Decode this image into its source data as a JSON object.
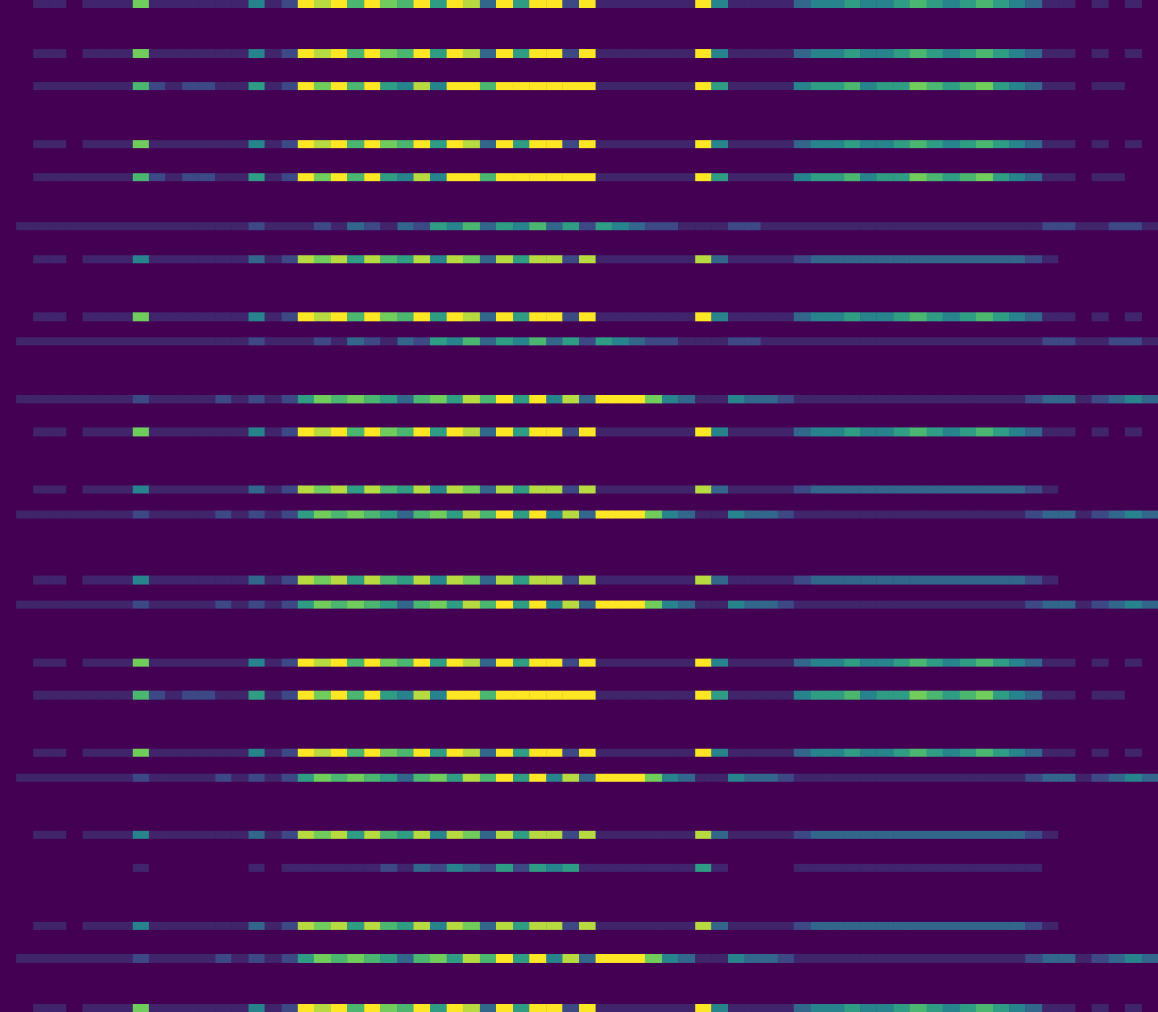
{
  "chart_data": {
    "type": "heatmap",
    "xlim": [
      0,
      70
    ],
    "ylim": [
      0,
      123
    ],
    "zlim": [
      0,
      9
    ],
    "y": [
      0,
      6,
      10,
      17,
      21,
      27,
      31,
      38,
      41,
      48,
      52,
      59,
      62,
      70,
      73,
      80,
      84,
      91,
      94,
      101,
      105,
      112,
      116,
      122
    ],
    "values": [
      [
        0,
        0,
        1,
        1,
        0,
        1,
        1,
        1,
        7,
        1,
        1,
        1,
        1,
        1,
        1,
        4,
        1,
        2,
        9,
        8,
        9,
        6,
        9,
        7,
        6,
        9,
        5,
        9,
        8,
        3,
        9,
        5,
        9,
        9,
        2,
        9,
        1,
        1,
        1,
        1,
        1,
        1,
        9,
        4,
        1,
        1,
        1,
        1,
        3,
        4,
        4,
        5,
        4,
        4,
        5,
        6,
        5,
        4,
        5,
        6,
        5,
        4,
        3,
        1,
        1,
        0,
        1,
        0,
        1,
        0
      ],
      [
        0,
        0,
        1,
        1,
        0,
        1,
        1,
        1,
        7,
        1,
        1,
        1,
        1,
        1,
        1,
        4,
        1,
        2,
        9,
        8,
        9,
        6,
        9,
        7,
        6,
        9,
        5,
        9,
        8,
        3,
        9,
        5,
        9,
        9,
        2,
        9,
        1,
        1,
        1,
        1,
        1,
        1,
        9,
        4,
        1,
        1,
        1,
        1,
        3,
        4,
        4,
        5,
        4,
        4,
        5,
        6,
        5,
        4,
        5,
        6,
        5,
        4,
        3,
        1,
        1,
        0,
        1,
        0,
        1,
        0
      ],
      [
        0,
        0,
        1,
        1,
        1,
        1,
        1,
        1,
        6,
        2,
        1,
        2,
        2,
        1,
        1,
        5,
        1,
        2,
        9,
        7,
        9,
        6,
        9,
        5,
        4,
        8,
        4,
        9,
        9,
        6,
        9,
        9,
        9,
        9,
        9,
        9,
        1,
        1,
        1,
        1,
        1,
        1,
        9,
        5,
        1,
        1,
        1,
        1,
        4,
        5,
        5,
        6,
        4,
        5,
        5,
        7,
        6,
        5,
        6,
        7,
        5,
        4,
        3,
        1,
        1,
        0,
        1,
        1,
        0,
        0
      ],
      [
        0,
        0,
        1,
        1,
        0,
        1,
        1,
        1,
        7,
        1,
        1,
        1,
        1,
        1,
        1,
        4,
        1,
        2,
        9,
        8,
        9,
        6,
        9,
        7,
        6,
        9,
        5,
        9,
        8,
        3,
        9,
        5,
        9,
        9,
        2,
        9,
        1,
        1,
        1,
        1,
        1,
        1,
        9,
        4,
        1,
        1,
        1,
        1,
        3,
        4,
        4,
        5,
        4,
        4,
        5,
        6,
        5,
        4,
        5,
        6,
        5,
        4,
        3,
        1,
        1,
        0,
        1,
        0,
        1,
        0
      ],
      [
        0,
        0,
        1,
        1,
        1,
        1,
        1,
        1,
        6,
        2,
        1,
        2,
        2,
        1,
        1,
        5,
        1,
        2,
        9,
        7,
        9,
        6,
        9,
        5,
        4,
        8,
        4,
        9,
        9,
        6,
        9,
        9,
        9,
        9,
        9,
        9,
        1,
        1,
        1,
        1,
        1,
        1,
        9,
        5,
        1,
        1,
        1,
        1,
        4,
        5,
        5,
        6,
        4,
        5,
        5,
        7,
        6,
        5,
        6,
        7,
        5,
        4,
        3,
        1,
        1,
        0,
        1,
        1,
        0,
        0
      ],
      [
        0,
        1,
        1,
        1,
        1,
        1,
        1,
        1,
        1,
        1,
        1,
        1,
        1,
        1,
        1,
        2,
        1,
        1,
        1,
        2,
        1,
        3,
        2,
        1,
        3,
        2,
        5,
        4,
        6,
        3,
        5,
        4,
        6,
        3,
        5,
        2,
        5,
        4,
        3,
        2,
        2,
        1,
        1,
        1,
        2,
        2,
        1,
        1,
        1,
        1,
        1,
        1,
        1,
        1,
        1,
        1,
        1,
        1,
        1,
        1,
        1,
        1,
        1,
        2,
        2,
        1,
        1,
        2,
        2,
        1
      ],
      [
        0,
        0,
        1,
        1,
        0,
        1,
        1,
        1,
        4,
        1,
        1,
        1,
        1,
        1,
        1,
        3,
        1,
        2,
        8,
        7,
        8,
        5,
        8,
        6,
        5,
        8,
        4,
        8,
        7,
        3,
        8,
        5,
        8,
        8,
        2,
        8,
        1,
        1,
        1,
        1,
        1,
        1,
        8,
        3,
        1,
        1,
        1,
        1,
        2,
        3,
        3,
        3,
        3,
        3,
        3,
        3,
        3,
        3,
        3,
        3,
        3,
        3,
        2,
        1,
        0,
        0,
        0,
        0,
        0,
        0
      ],
      [
        0,
        0,
        1,
        1,
        0,
        1,
        1,
        1,
        7,
        1,
        1,
        1,
        1,
        1,
        1,
        4,
        1,
        2,
        9,
        8,
        9,
        6,
        9,
        7,
        6,
        9,
        5,
        9,
        8,
        3,
        9,
        5,
        9,
        9,
        2,
        9,
        1,
        1,
        1,
        1,
        1,
        1,
        9,
        4,
        1,
        1,
        1,
        1,
        3,
        4,
        4,
        5,
        4,
        4,
        5,
        6,
        5,
        4,
        5,
        6,
        5,
        4,
        3,
        1,
        1,
        0,
        1,
        0,
        1,
        0
      ],
      [
        0,
        1,
        1,
        1,
        1,
        1,
        1,
        1,
        1,
        1,
        1,
        1,
        1,
        1,
        1,
        2,
        1,
        1,
        1,
        2,
        1,
        3,
        2,
        1,
        3,
        2,
        5,
        4,
        6,
        3,
        5,
        4,
        6,
        3,
        5,
        2,
        5,
        4,
        3,
        2,
        2,
        1,
        1,
        1,
        2,
        2,
        1,
        1,
        1,
        1,
        1,
        1,
        1,
        1,
        1,
        1,
        1,
        1,
        1,
        1,
        1,
        1,
        1,
        2,
        2,
        1,
        1,
        2,
        2,
        1
      ],
      [
        0,
        1,
        1,
        1,
        1,
        1,
        1,
        1,
        2,
        1,
        1,
        1,
        1,
        2,
        1,
        2,
        1,
        2,
        5,
        7,
        6,
        7,
        6,
        5,
        3,
        6,
        7,
        5,
        8,
        6,
        9,
        5,
        9,
        4,
        8,
        3,
        9,
        9,
        9,
        7,
        4,
        3,
        1,
        1,
        4,
        3,
        3,
        2,
        1,
        1,
        1,
        1,
        1,
        1,
        1,
        1,
        1,
        1,
        1,
        1,
        1,
        1,
        2,
        3,
        3,
        1,
        2,
        3,
        4,
        3
      ],
      [
        0,
        0,
        1,
        1,
        0,
        1,
        1,
        1,
        7,
        1,
        1,
        1,
        1,
        1,
        1,
        4,
        1,
        2,
        9,
        8,
        9,
        6,
        9,
        7,
        6,
        9,
        5,
        9,
        8,
        3,
        9,
        5,
        9,
        9,
        2,
        9,
        1,
        1,
        1,
        1,
        1,
        1,
        9,
        4,
        1,
        1,
        1,
        1,
        3,
        4,
        4,
        5,
        4,
        4,
        5,
        6,
        5,
        4,
        5,
        6,
        5,
        4,
        3,
        1,
        1,
        0,
        1,
        0,
        1,
        0
      ],
      [
        0,
        0,
        1,
        1,
        0,
        1,
        1,
        1,
        4,
        1,
        1,
        1,
        1,
        1,
        1,
        3,
        1,
        2,
        8,
        7,
        8,
        5,
        8,
        6,
        5,
        8,
        4,
        8,
        7,
        3,
        8,
        5,
        8,
        8,
        2,
        8,
        1,
        1,
        1,
        1,
        1,
        1,
        8,
        3,
        1,
        1,
        1,
        1,
        2,
        3,
        3,
        3,
        3,
        3,
        3,
        3,
        3,
        3,
        3,
        3,
        3,
        3,
        2,
        1,
        0,
        0,
        0,
        0,
        0,
        0
      ],
      [
        0,
        1,
        1,
        1,
        1,
        1,
        1,
        1,
        2,
        1,
        1,
        1,
        1,
        2,
        1,
        2,
        1,
        2,
        5,
        7,
        6,
        7,
        6,
        5,
        3,
        6,
        7,
        5,
        8,
        6,
        9,
        5,
        9,
        4,
        8,
        3,
        9,
        9,
        9,
        7,
        4,
        3,
        1,
        1,
        4,
        3,
        3,
        2,
        1,
        1,
        1,
        1,
        1,
        1,
        1,
        1,
        1,
        1,
        1,
        1,
        1,
        1,
        2,
        3,
        3,
        1,
        2,
        3,
        4,
        3
      ],
      [
        0,
        0,
        1,
        1,
        0,
        1,
        1,
        1,
        4,
        1,
        1,
        1,
        1,
        1,
        1,
        3,
        1,
        2,
        8,
        7,
        8,
        5,
        8,
        6,
        5,
        8,
        4,
        8,
        7,
        3,
        8,
        5,
        8,
        8,
        2,
        8,
        1,
        1,
        1,
        1,
        1,
        1,
        8,
        3,
        1,
        1,
        1,
        1,
        2,
        3,
        3,
        3,
        3,
        3,
        3,
        3,
        3,
        3,
        3,
        3,
        3,
        3,
        2,
        1,
        0,
        0,
        0,
        0,
        0,
        0
      ],
      [
        0,
        1,
        1,
        1,
        1,
        1,
        1,
        1,
        2,
        1,
        1,
        1,
        1,
        2,
        1,
        2,
        1,
        2,
        5,
        7,
        6,
        7,
        6,
        5,
        3,
        6,
        7,
        5,
        8,
        6,
        9,
        5,
        9,
        4,
        8,
        3,
        9,
        9,
        9,
        7,
        4,
        3,
        1,
        1,
        4,
        3,
        3,
        2,
        1,
        1,
        1,
        1,
        1,
        1,
        1,
        1,
        1,
        1,
        1,
        1,
        1,
        1,
        2,
        3,
        3,
        1,
        2,
        3,
        4,
        3
      ],
      [
        0,
        0,
        1,
        1,
        0,
        1,
        1,
        1,
        7,
        1,
        1,
        1,
        1,
        1,
        1,
        4,
        1,
        2,
        9,
        8,
        9,
        6,
        9,
        7,
        6,
        9,
        5,
        9,
        8,
        3,
        9,
        5,
        9,
        9,
        2,
        9,
        1,
        1,
        1,
        1,
        1,
        1,
        9,
        4,
        1,
        1,
        1,
        1,
        3,
        4,
        4,
        5,
        4,
        4,
        5,
        6,
        5,
        4,
        5,
        6,
        5,
        4,
        3,
        1,
        1,
        0,
        1,
        0,
        1,
        0
      ],
      [
        0,
        0,
        1,
        1,
        1,
        1,
        1,
        1,
        6,
        2,
        1,
        2,
        2,
        1,
        1,
        5,
        1,
        2,
        9,
        7,
        9,
        6,
        9,
        5,
        4,
        8,
        4,
        9,
        9,
        6,
        9,
        9,
        9,
        9,
        9,
        9,
        1,
        1,
        1,
        1,
        1,
        1,
        9,
        5,
        1,
        1,
        1,
        1,
        4,
        5,
        5,
        6,
        4,
        5,
        5,
        7,
        6,
        5,
        6,
        7,
        5,
        4,
        3,
        1,
        1,
        0,
        1,
        1,
        0,
        0
      ],
      [
        0,
        0,
        1,
        1,
        0,
        1,
        1,
        1,
        7,
        1,
        1,
        1,
        1,
        1,
        1,
        4,
        1,
        2,
        9,
        8,
        9,
        6,
        9,
        7,
        6,
        9,
        5,
        9,
        8,
        3,
        9,
        5,
        9,
        9,
        2,
        9,
        1,
        1,
        1,
        1,
        1,
        1,
        9,
        4,
        1,
        1,
        1,
        1,
        3,
        4,
        4,
        5,
        4,
        4,
        5,
        6,
        5,
        4,
        5,
        6,
        5,
        4,
        3,
        1,
        1,
        0,
        1,
        0,
        1,
        0
      ],
      [
        0,
        1,
        1,
        1,
        1,
        1,
        1,
        1,
        2,
        1,
        1,
        1,
        1,
        2,
        1,
        2,
        1,
        2,
        5,
        7,
        6,
        7,
        6,
        5,
        3,
        6,
        7,
        5,
        8,
        6,
        9,
        5,
        9,
        4,
        8,
        3,
        9,
        9,
        9,
        7,
        4,
        3,
        1,
        1,
        4,
        3,
        3,
        2,
        1,
        1,
        1,
        1,
        1,
        1,
        1,
        1,
        1,
        1,
        1,
        1,
        1,
        1,
        2,
        3,
        3,
        1,
        2,
        3,
        4,
        3
      ],
      [
        0,
        0,
        1,
        1,
        0,
        1,
        1,
        1,
        4,
        1,
        1,
        1,
        1,
        1,
        1,
        3,
        1,
        2,
        8,
        7,
        8,
        5,
        8,
        6,
        5,
        8,
        4,
        8,
        7,
        3,
        8,
        5,
        8,
        8,
        2,
        8,
        1,
        1,
        1,
        1,
        1,
        1,
        8,
        3,
        1,
        1,
        1,
        1,
        2,
        3,
        3,
        3,
        3,
        3,
        3,
        3,
        3,
        3,
        3,
        3,
        3,
        3,
        2,
        1,
        0,
        0,
        0,
        0,
        0,
        0
      ],
      [
        0,
        0,
        0,
        0,
        0,
        0,
        0,
        0,
        1,
        0,
        0,
        0,
        0,
        0,
        0,
        1,
        0,
        1,
        1,
        1,
        1,
        1,
        1,
        2,
        1,
        3,
        2,
        4,
        3,
        2,
        5,
        2,
        5,
        4,
        5,
        1,
        1,
        1,
        1,
        1,
        1,
        1,
        5,
        1,
        0,
        0,
        0,
        0,
        1,
        1,
        1,
        1,
        1,
        1,
        1,
        1,
        1,
        1,
        1,
        1,
        1,
        1,
        1,
        0,
        0,
        0,
        0,
        0,
        0,
        0
      ],
      [
        0,
        0,
        1,
        1,
        0,
        1,
        1,
        1,
        4,
        1,
        1,
        1,
        1,
        1,
        1,
        3,
        1,
        2,
        8,
        7,
        8,
        5,
        8,
        6,
        5,
        8,
        4,
        8,
        7,
        3,
        8,
        5,
        8,
        8,
        2,
        8,
        1,
        1,
        1,
        1,
        1,
        1,
        8,
        3,
        1,
        1,
        1,
        1,
        2,
        3,
        3,
        3,
        3,
        3,
        3,
        3,
        3,
        3,
        3,
        3,
        3,
        3,
        2,
        1,
        0,
        0,
        0,
        0,
        0,
        0
      ],
      [
        0,
        1,
        1,
        1,
        1,
        1,
        1,
        1,
        2,
        1,
        1,
        1,
        1,
        2,
        1,
        2,
        1,
        2,
        5,
        7,
        6,
        7,
        6,
        5,
        3,
        6,
        7,
        5,
        8,
        6,
        9,
        5,
        9,
        4,
        8,
        3,
        9,
        9,
        9,
        7,
        4,
        3,
        1,
        1,
        4,
        3,
        3,
        2,
        1,
        1,
        1,
        1,
        1,
        1,
        1,
        1,
        1,
        1,
        1,
        1,
        1,
        1,
        2,
        3,
        3,
        1,
        2,
        3,
        4,
        3
      ],
      [
        0,
        0,
        1,
        1,
        0,
        1,
        1,
        1,
        7,
        1,
        1,
        1,
        1,
        1,
        1,
        4,
        1,
        2,
        9,
        8,
        9,
        6,
        9,
        7,
        6,
        9,
        5,
        9,
        8,
        3,
        9,
        5,
        9,
        9,
        2,
        9,
        1,
        1,
        1,
        1,
        1,
        1,
        9,
        4,
        1,
        1,
        1,
        1,
        3,
        4,
        4,
        5,
        4,
        4,
        5,
        6,
        5,
        4,
        5,
        6,
        5,
        4,
        3,
        1,
        1,
        0,
        1,
        0,
        1,
        0
      ]
    ]
  }
}
